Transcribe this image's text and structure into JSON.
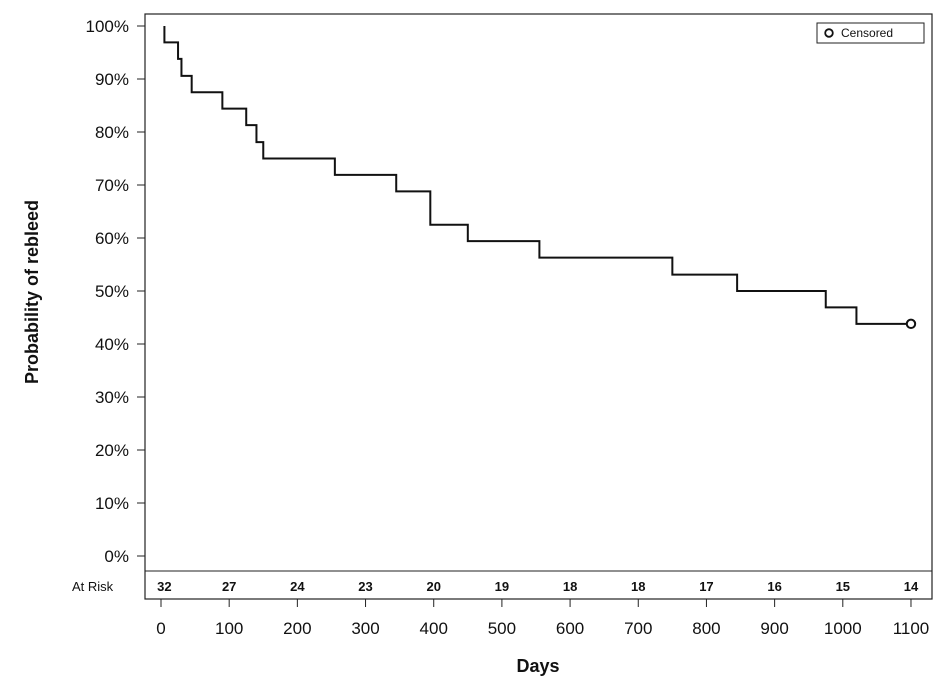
{
  "chart_data": {
    "type": "line",
    "subtype": "kaplan-meier step",
    "title": "",
    "xlabel": "Days",
    "ylabel": "Probability of rebleed",
    "xlim": [
      0,
      1100
    ],
    "ylim": [
      0,
      100
    ],
    "x_ticks": [
      0,
      100,
      200,
      300,
      400,
      500,
      600,
      700,
      800,
      900,
      1000,
      1100
    ],
    "y_ticks": [
      0,
      10,
      20,
      30,
      40,
      50,
      60,
      70,
      80,
      90,
      100
    ],
    "y_tick_labels": [
      "0%",
      "10%",
      "20%",
      "30%",
      "40%",
      "50%",
      "60%",
      "70%",
      "80%",
      "90%",
      "100%"
    ],
    "grid": false,
    "legend": {
      "position": "top-right",
      "entries": [
        {
          "label": "Censored",
          "marker": "open-circle"
        }
      ]
    },
    "series": [
      {
        "x": [
          5,
          25,
          30,
          45,
          90,
          125,
          140,
          150,
          255,
          345,
          395,
          450,
          555,
          750,
          845,
          975,
          1020,
          1100
        ],
        "y": [
          96.9,
          93.8,
          90.6,
          87.5,
          84.4,
          81.3,
          78.1,
          75.0,
          71.9,
          68.8,
          62.5,
          59.4,
          56.3,
          53.1,
          50.0,
          46.9,
          43.8,
          43.8
        ],
        "start": [
          5,
          100
        ],
        "color": "#111111"
      }
    ],
    "censored": [
      {
        "x": 1100,
        "y": 43.8
      }
    ],
    "at_risk": {
      "label": "At Risk",
      "x": [
        5,
        100,
        200,
        300,
        400,
        500,
        600,
        700,
        800,
        900,
        1000,
        1100
      ],
      "values": [
        "32",
        "27",
        "24",
        "23",
        "20",
        "19",
        "18",
        "18",
        "17",
        "16",
        "15",
        "14"
      ]
    }
  }
}
